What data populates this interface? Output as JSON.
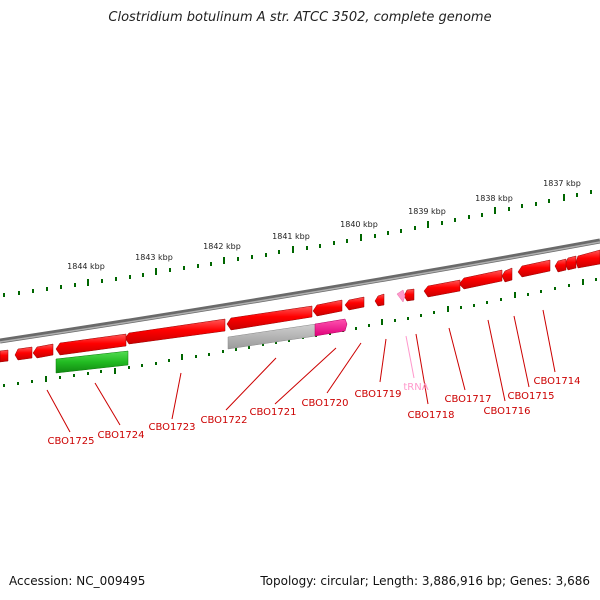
{
  "title": "Clostridium botulinum A str. ATCC 3502, complete genome",
  "footer": {
    "accession": "Accession: NC_009495",
    "summary": "Topology: circular; Length: 3,886,916 bp; Genes: 3,686"
  },
  "colors": {
    "cds": "#ff0000",
    "rrna_green": "#33cc33",
    "pseudo_grey": "#b0b0b0",
    "pink_gene": "#ff1493",
    "trna": "#ff99cc",
    "backbone": "#808080",
    "scale": "#006600",
    "label": "#cc0000"
  },
  "ticks": [
    "1837 kbp",
    "1838 kbp",
    "1839 kbp",
    "1840 kbp",
    "1841 kbp",
    "1842 kbp",
    "1843 kbp",
    "1844 kbp"
  ],
  "labels": [
    "CBO1714",
    "CBO1715",
    "CBO1716",
    "CBO1717",
    "tRNA",
    "CBO1718",
    "CBO1719",
    "CBO1720",
    "CBO1721",
    "CBO1722",
    "CBO1723",
    "CBO1724",
    "CBO1725"
  ]
}
